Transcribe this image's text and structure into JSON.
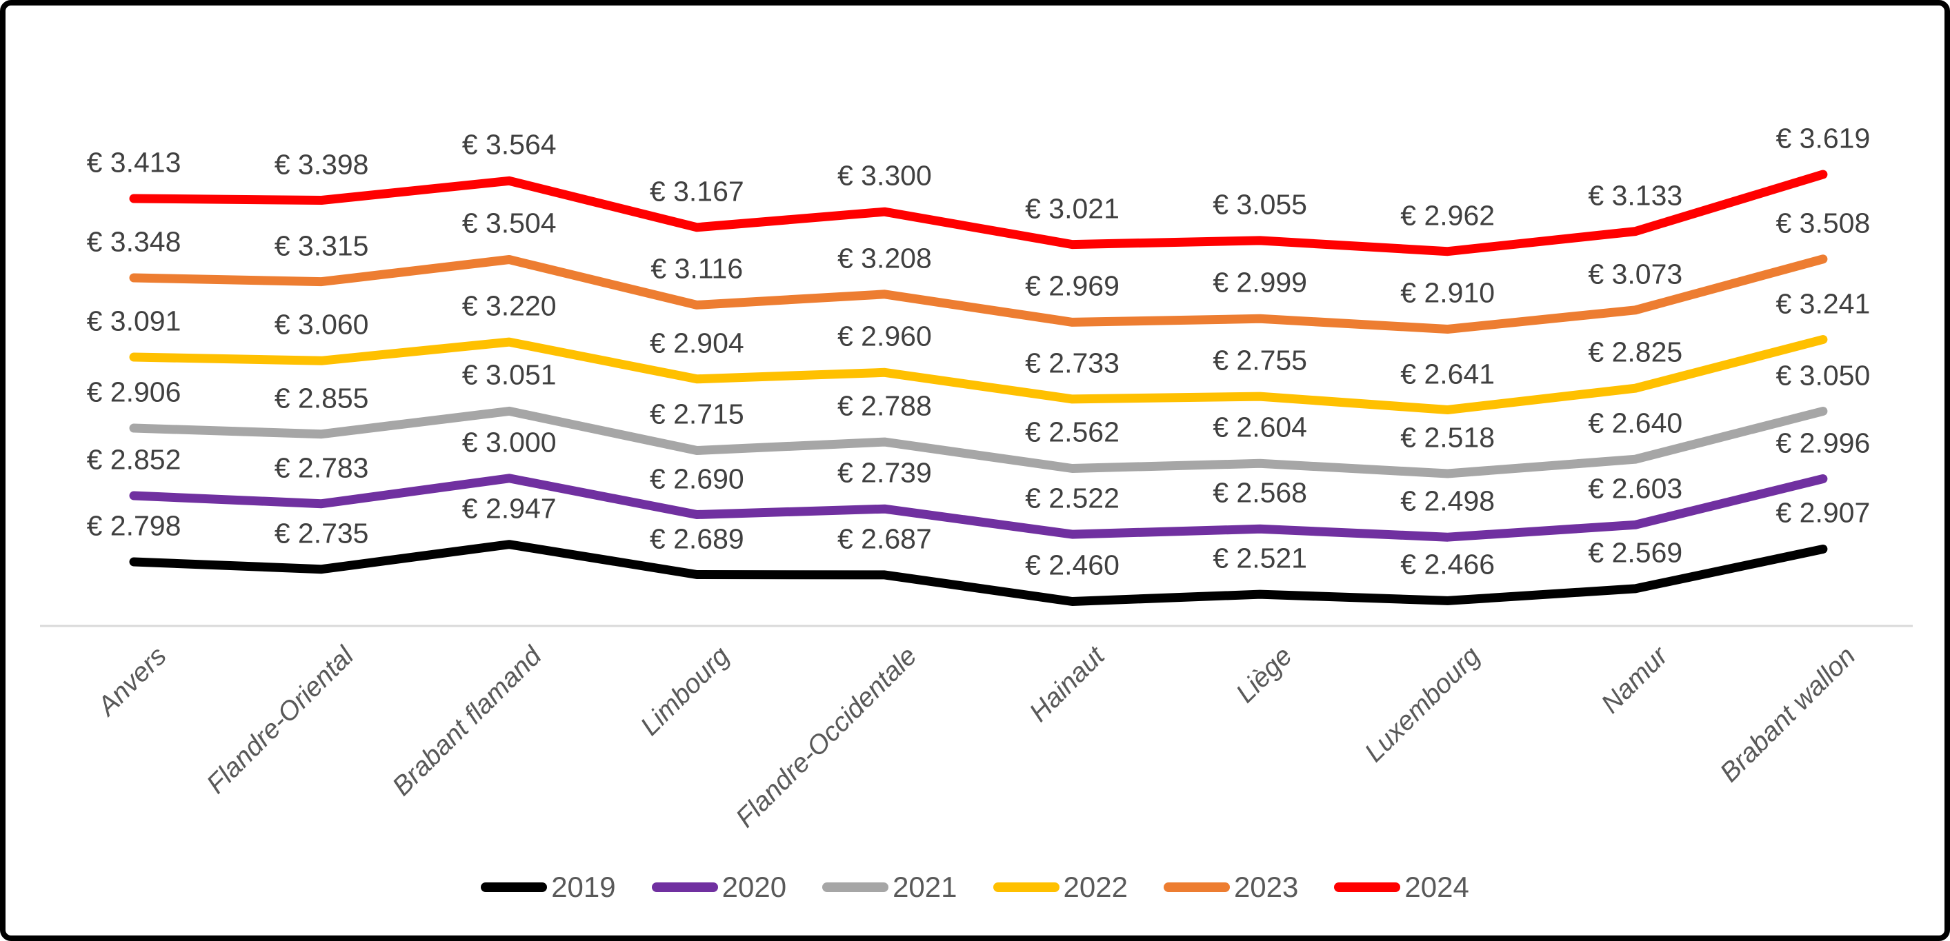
{
  "chart_data": {
    "type": "line",
    "title": "",
    "currency_prefix": "€",
    "categories": [
      "Anvers",
      "Flandre-Oriental",
      "Brabant flamand",
      "Limbourg",
      "Flandre-Occidentale",
      "Hainaut",
      "Liège",
      "Luxembourg",
      "Namur",
      "Brabant wallon"
    ],
    "series": [
      {
        "name": "2019",
        "color": "#000000",
        "values": [
          2.798,
          2.735,
          2.947,
          2.689,
          2.687,
          2.46,
          2.521,
          2.466,
          2.569,
          2.907
        ]
      },
      {
        "name": "2020",
        "color": "#7030A0",
        "values": [
          2.852,
          2.783,
          3.0,
          2.69,
          2.739,
          2.522,
          2.568,
          2.498,
          2.603,
          2.996
        ]
      },
      {
        "name": "2021",
        "color": "#A6A6A6",
        "values": [
          2.906,
          2.855,
          3.051,
          2.715,
          2.788,
          2.562,
          2.604,
          2.518,
          2.64,
          3.05
        ]
      },
      {
        "name": "2022",
        "color": "#FFC000",
        "values": [
          3.091,
          3.06,
          3.22,
          2.904,
          2.96,
          2.733,
          2.755,
          2.641,
          2.825,
          3.241
        ]
      },
      {
        "name": "2023",
        "color": "#ED7D31",
        "values": [
          3.348,
          3.315,
          3.504,
          3.116,
          3.208,
          2.969,
          2.999,
          2.91,
          3.073,
          3.508
        ]
      },
      {
        "name": "2024",
        "color": "#FF0000",
        "values": [
          3.413,
          3.398,
          3.564,
          3.167,
          3.3,
          3.021,
          3.055,
          2.962,
          3.133,
          3.619
        ]
      }
    ],
    "value_label_format": "€ #.###",
    "data_labels": "above each point",
    "legend_position": "bottom",
    "legend_entries": [
      "2019",
      "2020",
      "2021",
      "2022",
      "2023",
      "2024"
    ],
    "y_axis": "hidden",
    "gridlines": "off",
    "colors": {
      "value_label_text": "#404040",
      "axis_label_text": "#595959",
      "axis_line": "#D9D9D9",
      "frame_border": "#000000",
      "background": "#FFFFFF"
    }
  }
}
